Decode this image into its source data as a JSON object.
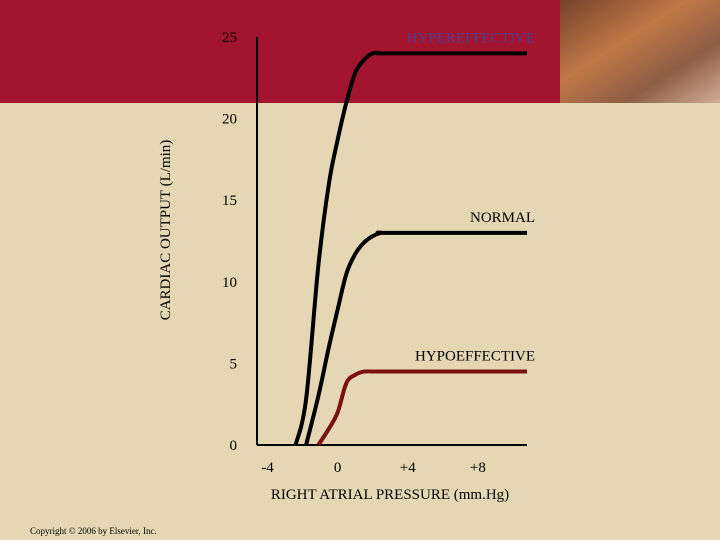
{
  "chart_data": {
    "type": "line",
    "x_label": "RIGHT ATRIAL PRESSURE (mm.Hg)",
    "y_label": "CARDIAC OUTPUT (L/min)",
    "x": [
      -2.4,
      -1.8,
      -1.1,
      -0.5,
      0,
      0.5,
      1,
      1.5,
      2,
      2.5,
      3,
      10.8
    ],
    "series": [
      {
        "name": "HYPEREFFECTIVE",
        "color": "#000000",
        "label_color": "#4b3f8f",
        "values": [
          0,
          2.8,
          11,
          16,
          18.7,
          21,
          22.8,
          23.6,
          24,
          24,
          24,
          24
        ]
      },
      {
        "name": "NORMAL",
        "color": "#000000",
        "label_color": "#000000",
        "values": [
          null,
          0,
          3,
          6,
          8.3,
          10.5,
          11.7,
          12.4,
          12.8,
          13,
          13,
          13
        ]
      },
      {
        "name": "HYPOEFFECTIVE",
        "color": "#7a1010",
        "label_color": "#000000",
        "values": [
          null,
          null,
          0,
          1,
          2,
          3.8,
          4.3,
          4.5,
          4.5,
          4.5,
          4.5,
          4.5
        ]
      }
    ],
    "xlim": [
      -4.6,
      10.8
    ],
    "xticks": [
      -4,
      0,
      {
        "value": 4,
        "label": "+4"
      },
      {
        "value": 8,
        "label": "+8"
      }
    ],
    "ylim": [
      0,
      25
    ],
    "yticks": [
      0,
      5,
      10,
      15,
      20,
      25
    ]
  },
  "copyright": "Copyright © 2006 by Elsevier, Inc."
}
